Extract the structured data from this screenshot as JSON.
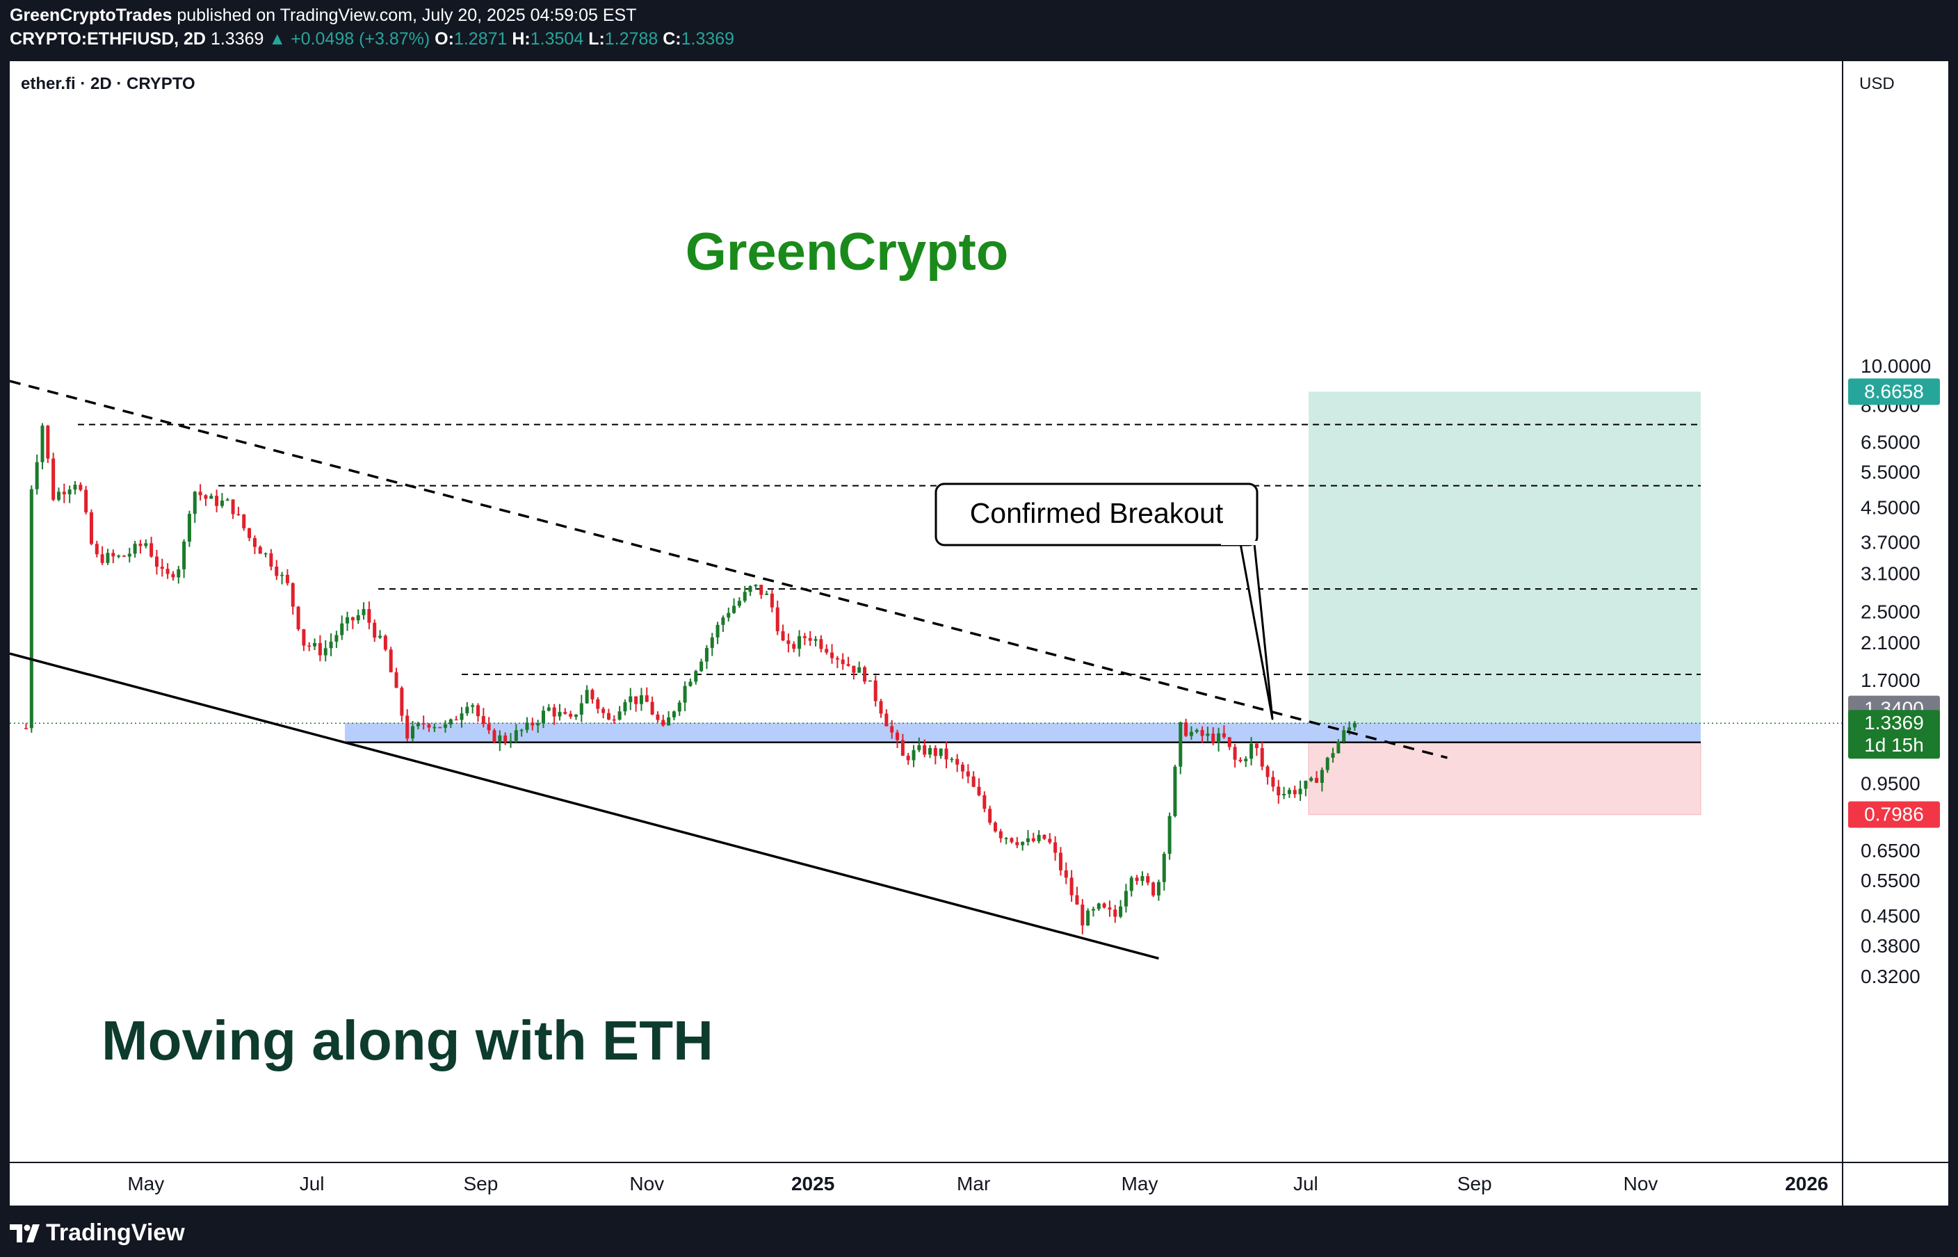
{
  "header": {
    "publisher": "GreenCryptoTrades",
    "published_text": "published on TradingView.com, July 20, 2025 04:59:05 EST",
    "symbol": "CRYPTO:ETHFIUSD, 2D",
    "last": "1.3369",
    "change": "+0.0498 (+3.87%)",
    "o_label": "O:",
    "o_value": "1.2871",
    "h_label": "H:",
    "h_value": "1.3504",
    "l_label": "L:",
    "l_value": "1.2788",
    "c_label": "C:",
    "c_value": "1.3369"
  },
  "legend": {
    "title": "ether.fi · 2D · CRYPTO"
  },
  "scale": {
    "currency": "USD"
  },
  "footer": {
    "logo_text": "TradingView"
  },
  "colors": {
    "up": "#1b7a2b",
    "down": "#e0202b",
    "accent": "#26a69a",
    "target_zone": "#cfebe4",
    "stop_zone": "#fadadd",
    "breakout_zone": "#aac4fa",
    "watermark_green": "#1a8a1a",
    "caption_dark": "#0d3b2e"
  },
  "chart_data": {
    "type": "candlestick",
    "title": "ether.fi · 2D · CRYPTO",
    "scale": "log",
    "ylim": [
      0.29,
      12.4
    ],
    "y_ticks": [
      10.0,
      8.0,
      6.5,
      5.5,
      4.5,
      3.7,
      3.1,
      2.5,
      2.1,
      1.7,
      1.15,
      0.95,
      0.65,
      0.55,
      0.45,
      0.38,
      0.32
    ],
    "y_tick_labels": [
      "10.0000",
      "8.0000",
      "6.5000",
      "5.5000",
      "4.5000",
      "3.7000",
      "3.1000",
      "2.5000",
      "2.1000",
      "1.7000",
      "1.1500",
      "0.9500",
      "0.6500",
      "0.5500",
      "0.4500",
      "0.3800",
      "0.3200"
    ],
    "x_ticks": [
      {
        "label": "May",
        "date": "2024-05-01",
        "bold": false
      },
      {
        "label": "Jul",
        "date": "2024-07-01",
        "bold": false
      },
      {
        "label": "Sep",
        "date": "2024-09-01",
        "bold": false
      },
      {
        "label": "Nov",
        "date": "2024-11-01",
        "bold": false
      },
      {
        "label": "2025",
        "date": "2025-01-01",
        "bold": true
      },
      {
        "label": "Mar",
        "date": "2025-03-01",
        "bold": false
      },
      {
        "label": "May",
        "date": "2025-05-01",
        "bold": false
      },
      {
        "label": "Jul",
        "date": "2025-07-01",
        "bold": false
      },
      {
        "label": "Sep",
        "date": "2025-09-01",
        "bold": false
      },
      {
        "label": "Nov",
        "date": "2025-11-01",
        "bold": false
      },
      {
        "label": "2026",
        "date": "2026-01-01",
        "bold": true
      }
    ],
    "xlim": [
      "2024-03-12",
      "2026-02-22"
    ],
    "price_path": [
      [
        "2024-03-18",
        1.3
      ],
      [
        "2024-03-20",
        5.0
      ],
      [
        "2024-03-24",
        7.2
      ],
      [
        "2024-03-28",
        4.8
      ],
      [
        "2024-04-06",
        5.3
      ],
      [
        "2024-04-12",
        3.4
      ],
      [
        "2024-04-22",
        3.4
      ],
      [
        "2024-05-01",
        3.7
      ],
      [
        "2024-05-08",
        3.0
      ],
      [
        "2024-05-14",
        3.3
      ],
      [
        "2024-05-18",
        5.0
      ],
      [
        "2024-05-24",
        4.7
      ],
      [
        "2024-06-01",
        4.6
      ],
      [
        "2024-06-08",
        3.8
      ],
      [
        "2024-06-15",
        3.4
      ],
      [
        "2024-06-22",
        2.9
      ],
      [
        "2024-06-28",
        2.1
      ],
      [
        "2024-07-05",
        2.0
      ],
      [
        "2024-07-12",
        2.3
      ],
      [
        "2024-07-20",
        2.5
      ],
      [
        "2024-07-28",
        2.0
      ],
      [
        "2024-08-05",
        1.25
      ],
      [
        "2024-08-12",
        1.35
      ],
      [
        "2024-08-20",
        1.3
      ],
      [
        "2024-08-28",
        1.55
      ],
      [
        "2024-09-03",
        1.25
      ],
      [
        "2024-09-10",
        1.22
      ],
      [
        "2024-09-18",
        1.3
      ],
      [
        "2024-09-26",
        1.45
      ],
      [
        "2024-10-04",
        1.35
      ],
      [
        "2024-10-10",
        1.6
      ],
      [
        "2024-10-18",
        1.35
      ],
      [
        "2024-10-24",
        1.55
      ],
      [
        "2024-11-01",
        1.5
      ],
      [
        "2024-11-07",
        1.28
      ],
      [
        "2024-11-14",
        1.6
      ],
      [
        "2024-11-22",
        2.0
      ],
      [
        "2024-11-30",
        2.5
      ],
      [
        "2024-12-06",
        2.7
      ],
      [
        "2024-12-10",
        2.9
      ],
      [
        "2024-12-16",
        2.7
      ],
      [
        "2024-12-22",
        2.0
      ],
      [
        "2024-12-30",
        2.2
      ],
      [
        "2025-01-06",
        2.05
      ],
      [
        "2025-01-12",
        1.9
      ],
      [
        "2025-01-20",
        1.75
      ],
      [
        "2025-01-26",
        1.45
      ],
      [
        "2025-02-03",
        1.1
      ],
      [
        "2025-02-10",
        1.15
      ],
      [
        "2025-02-18",
        1.12
      ],
      [
        "2025-02-26",
        1.0
      ],
      [
        "2025-03-04",
        0.85
      ],
      [
        "2025-03-10",
        0.72
      ],
      [
        "2025-03-20",
        0.68
      ],
      [
        "2025-03-28",
        0.7
      ],
      [
        "2025-04-04",
        0.55
      ],
      [
        "2025-04-10",
        0.44
      ],
      [
        "2025-04-16",
        0.47
      ],
      [
        "2025-04-22",
        0.45
      ],
      [
        "2025-04-28",
        0.58
      ],
      [
        "2025-05-06",
        0.52
      ],
      [
        "2025-05-08",
        0.55
      ],
      [
        "2025-05-12",
        0.8
      ],
      [
        "2025-05-16",
        1.3
      ],
      [
        "2025-05-22",
        1.25
      ],
      [
        "2025-06-01",
        1.22
      ],
      [
        "2025-06-06",
        1.05
      ],
      [
        "2025-06-12",
        1.2
      ],
      [
        "2025-06-16",
        1.0
      ],
      [
        "2025-06-22",
        0.9
      ],
      [
        "2025-06-28",
        0.92
      ],
      [
        "2025-07-03",
        0.95
      ],
      [
        "2025-07-08",
        1.05
      ],
      [
        "2025-07-12",
        1.18
      ],
      [
        "2025-07-16",
        1.29
      ],
      [
        "2025-07-20",
        1.3369
      ]
    ],
    "levels": {
      "dashed_resistance": [
        7.2,
        5.1,
        2.85,
        1.76
      ],
      "support": 1.2,
      "breakout_zone": [
        1.2,
        1.34
      ],
      "target": 8.6658,
      "stop": 0.7986
    },
    "trendlines": [
      {
        "style": "dashed",
        "from": [
          "2024-03-12",
          9.2
        ],
        "to": [
          "2025-08-22",
          1.1
        ]
      },
      {
        "style": "solid",
        "from": [
          "2024-03-12",
          1.98
        ],
        "to": [
          "2025-05-08",
          0.355
        ]
      }
    ],
    "annotations": [
      {
        "text": "Confirmed Breakout"
      },
      {
        "text": "GreenCrypto"
      },
      {
        "text": "Moving along with ETH"
      }
    ],
    "price_tags": [
      {
        "value": "8.6658",
        "color": "#26a69a"
      },
      {
        "value": "1.3400",
        "color": "#787b86"
      },
      {
        "value": "1.3369",
        "sub": "1d 15h",
        "color": "#1b7a2b"
      },
      {
        "value": "0.7986",
        "color": "#f23645"
      }
    ]
  }
}
